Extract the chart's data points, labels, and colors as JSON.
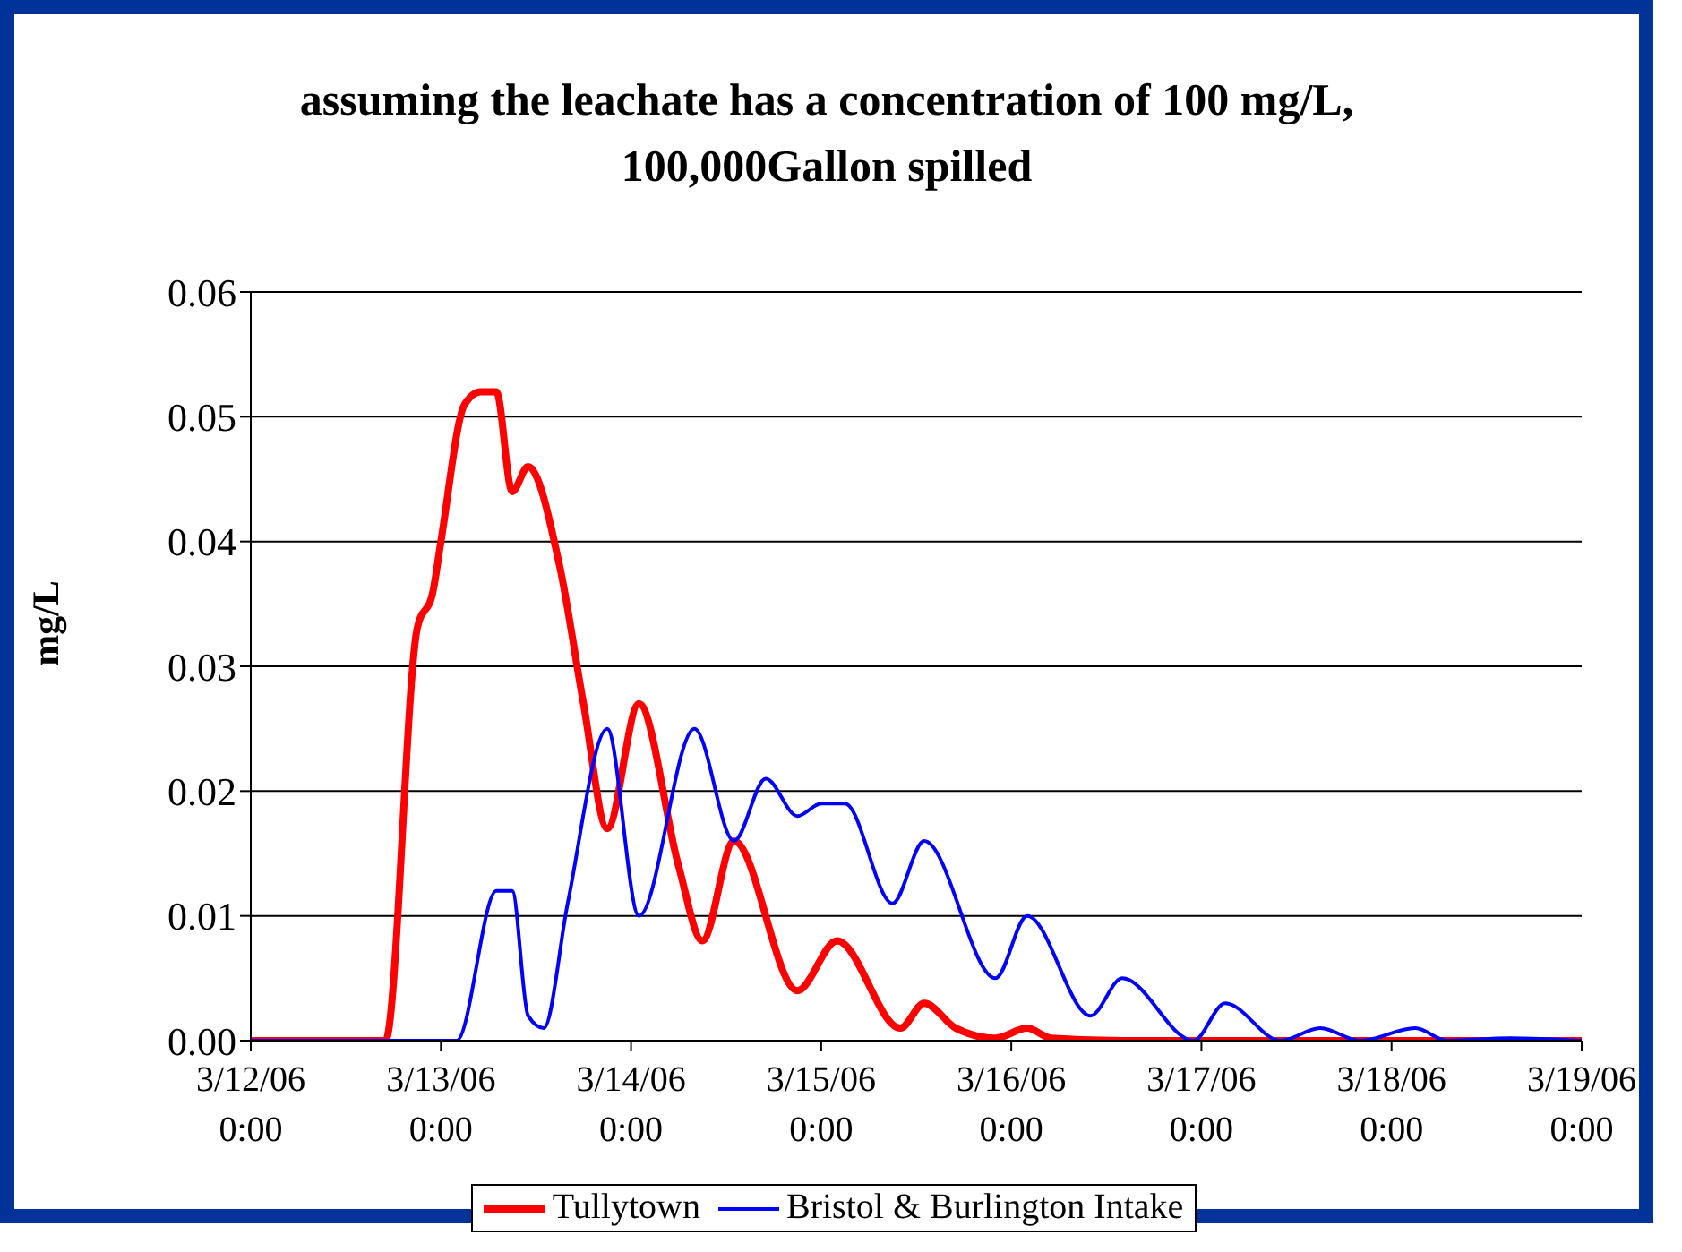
{
  "chart_data": {
    "type": "line",
    "title": "assuming the leachate has a concentration of 100 mg/L, 100,000Gallon spilled",
    "ylabel": "mg/L",
    "xlim": [
      "--03-12T00:00",
      "--03-19T00:00"
    ],
    "xticks": [
      {
        "value": "--03-12T00:00",
        "label": "3/12/06 0:00"
      },
      {
        "value": "--03-13T00:00",
        "label": "3/13/06 0:00"
      },
      {
        "value": "--03-14T00:00",
        "label": "3/14/06 0:00"
      },
      {
        "value": "--03-15T00:00",
        "label": "3/15/06 0:00"
      },
      {
        "value": "--03-16T00:00",
        "label": "3/16/06 0:00"
      },
      {
        "value": "--03-17T00:00",
        "label": "3/17/06 0:00"
      },
      {
        "value": "--03-18T00:00",
        "label": "3/18/06 0:00"
      },
      {
        "value": "--03-19T00:00",
        "label": "3/19/06 0:00"
      }
    ],
    "ylim": [
      0,
      0.06
    ],
    "yticks": [
      {
        "value": 0,
        "label": "0.00"
      },
      {
        "value": 0.01,
        "label": "0.01"
      },
      {
        "value": 0.02,
        "label": "0.02"
      },
      {
        "value": 0.03,
        "label": "0.03"
      },
      {
        "value": 0.04,
        "label": "0.04"
      },
      {
        "value": 0.05,
        "label": "0.05"
      },
      {
        "value": 0.06,
        "label": "0.06"
      }
    ],
    "grid": "y",
    "legend": "bottom",
    "marker": "none",
    "line_style": "solid",
    "series": [
      {
        "name": "Tullytown",
        "color": "#ff0000",
        "x": [
          "--03-12T00:00",
          "--03-12T17:00",
          "--03-12T21:00",
          "--03-12T23:00",
          "--03-13T00:00",
          "--03-13T03:00",
          "--03-13T05:00",
          "--03-13T07:00",
          "--03-13T09:00",
          "--03-13T11:00",
          "--03-13T15:00",
          "--03-13T18:00",
          "--03-13T21:00",
          "--03-14T01:00",
          "--03-14T06:00",
          "--03-14T09:00",
          "--03-14T13:00",
          "--03-14T21:00",
          "--03-15T02:00",
          "--03-15T10:00",
          "--03-15T13:00",
          "--03-15T17:00",
          "--03-15T22:00",
          "--03-16T02:00",
          "--03-16T05:00",
          "--03-16T14:00",
          "--03-19T00:00"
        ],
        "values": [
          0,
          0,
          0.033,
          0.036,
          0.04,
          0.051,
          0.052,
          0.052,
          0.044,
          0.046,
          0.038,
          0.027,
          0.017,
          0.027,
          0.014,
          0.008,
          0.016,
          0.004,
          0.008,
          0.001,
          0.003,
          0.001,
          0.0002,
          0.001,
          0.0002,
          0,
          0
        ]
      },
      {
        "name": "Bristol & Burlington Intake",
        "color": "#0000ff",
        "x": [
          "--03-12T00:00",
          "--03-13T02:00",
          "--03-13T07:00",
          "--03-13T09:00",
          "--03-13T11:00",
          "--03-13T13:00",
          "--03-13T16:00",
          "--03-13T21:00",
          "--03-14T01:00",
          "--03-14T08:00",
          "--03-14T13:00",
          "--03-14T17:00",
          "--03-14T21:00",
          "--03-15T00:00",
          "--03-15T03:00",
          "--03-15T09:00",
          "--03-15T13:00",
          "--03-15T22:00",
          "--03-16T02:00",
          "--03-16T10:00",
          "--03-16T14:00",
          "--03-16T23:00",
          "--03-17T03:00",
          "--03-17T10:00",
          "--03-17T15:00",
          "--03-17T20:00",
          "--03-18T03:00",
          "--03-18T07:00",
          "--03-18T15:00",
          "--03-19T00:00"
        ],
        "values": [
          0,
          0,
          0.012,
          0.012,
          0.002,
          0.001,
          0.011,
          0.025,
          0.01,
          0.025,
          0.016,
          0.021,
          0.018,
          0.019,
          0.019,
          0.011,
          0.016,
          0.005,
          0.01,
          0.002,
          0.005,
          0,
          0.003,
          0,
          0.001,
          0,
          0.001,
          0,
          0.0002,
          0
        ]
      }
    ]
  }
}
